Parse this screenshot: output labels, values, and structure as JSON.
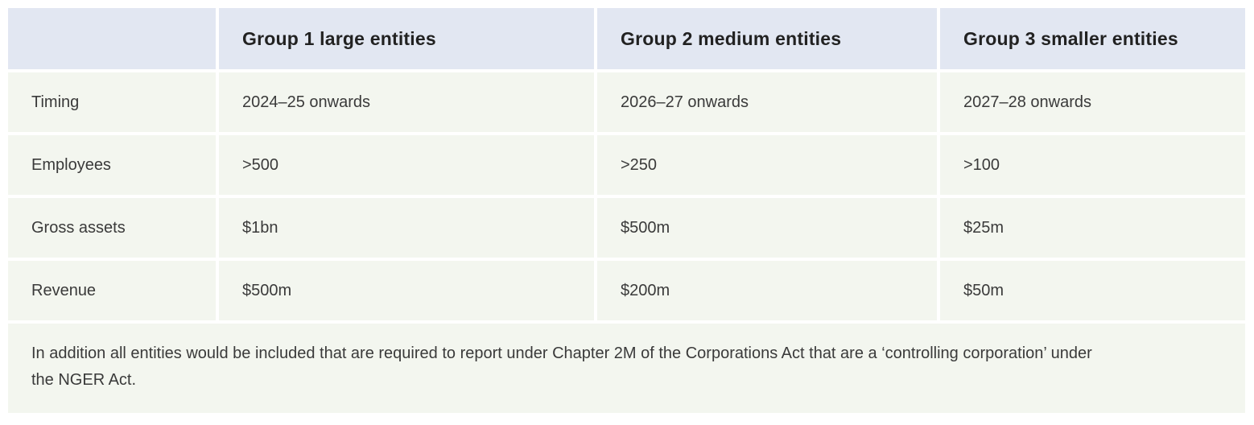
{
  "headers": [
    "",
    "Group 1 large entities",
    "Group 2 medium entities",
    "Group 3 smaller entities"
  ],
  "rows": [
    {
      "label": "Timing",
      "values": [
        "2024–25 onwards",
        "2026–27 onwards",
        "2027–28 onwards"
      ]
    },
    {
      "label": "Employees",
      "values": [
        ">500",
        ">250",
        ">100"
      ]
    },
    {
      "label": "Gross assets",
      "values": [
        "$1bn",
        "$500m",
        "$25m"
      ]
    },
    {
      "label": "Revenue",
      "values": [
        "$500m",
        "$200m",
        "$50m"
      ]
    }
  ],
  "note": "In addition all entities would be included that are required to report under Chapter 2M of the Corporations Act that are a ‘controlling corporation’ under the NGER Act."
}
